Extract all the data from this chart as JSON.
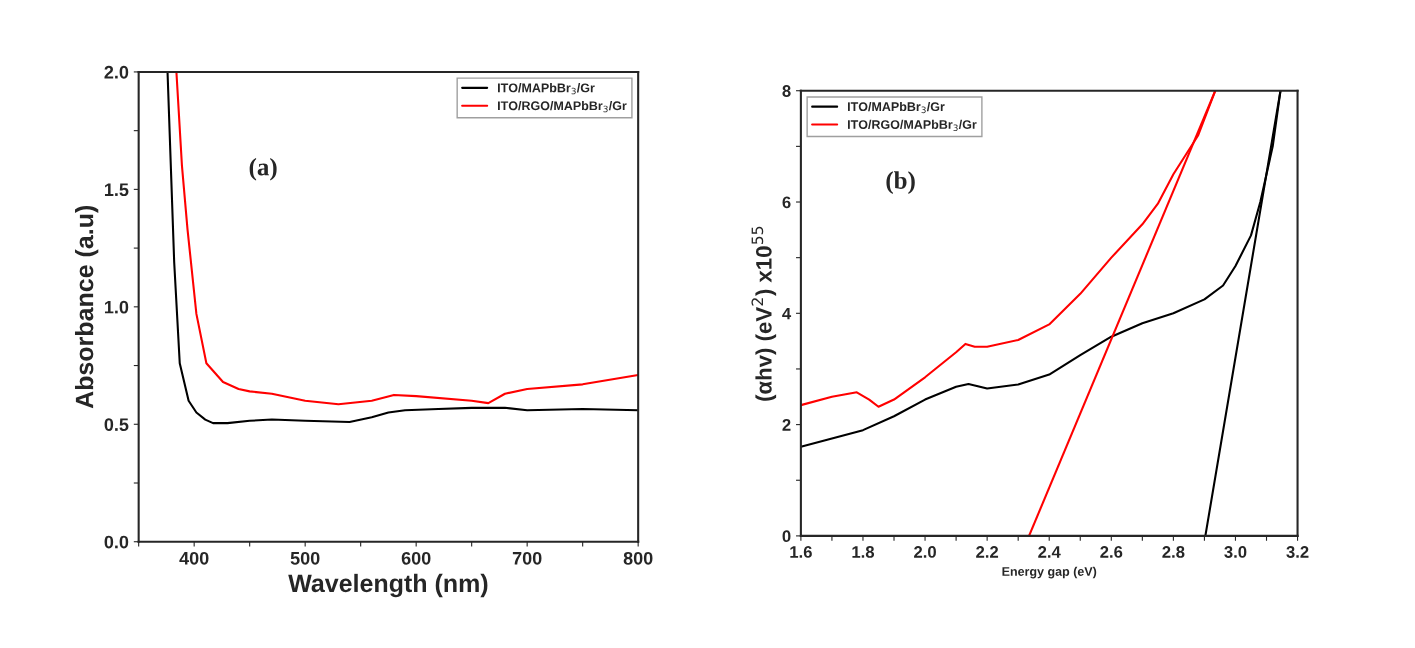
{
  "chart_data": [
    {
      "type": "line",
      "xlabel": "Wavelength (nm)",
      "ylabel": "Absorbance (a.u)",
      "annotations": [
        "(a)"
      ],
      "xlim": [
        350,
        800
      ],
      "ylim": [
        0,
        2
      ],
      "xticks": [
        {
          "value": 350,
          "label": null
        },
        400,
        {
          "value": 450,
          "label": null
        },
        500,
        {
          "value": 550,
          "label": null
        },
        600,
        {
          "value": 650,
          "label": null
        },
        700,
        {
          "value": 750,
          "label": null
        },
        800
      ],
      "yticks": [
        {
          "value": 0,
          "label": "0.0"
        },
        {
          "value": 0.25,
          "label": null
        },
        0.5,
        {
          "value": 0.75,
          "label": null
        },
        {
          "value": 1,
          "label": "1.0"
        },
        {
          "value": 1.25,
          "label": null
        },
        1.5,
        {
          "value": 1.75,
          "label": null
        },
        {
          "value": 2,
          "label": "2.0"
        }
      ],
      "grid": false,
      "legend": "top right",
      "series": [
        {
          "name": "ITO/MAPbBr$_{3}$/Gr",
          "color": "#000000",
          "x": [
            376,
            382,
            387,
            395,
            402,
            410,
            417,
            430,
            450,
            470,
            500,
            540,
            560,
            575,
            590,
            620,
            650,
            680,
            700,
            750,
            800
          ],
          "values": [
            2.0,
            1.19,
            0.76,
            0.6,
            0.55,
            0.52,
            0.505,
            0.505,
            0.515,
            0.52,
            0.515,
            0.51,
            0.53,
            0.55,
            0.56,
            0.565,
            0.57,
            0.57,
            0.56,
            0.565,
            0.56
          ]
        },
        {
          "name": "ITO/RGO/MAPbBr$_{3}$/Gr",
          "color": "#ff0000",
          "x": [
            384,
            389,
            394,
            402,
            411,
            426,
            440,
            450,
            470,
            500,
            530,
            560,
            580,
            600,
            650,
            665,
            680,
            700,
            750,
            800
          ],
          "values": [
            2.0,
            1.6,
            1.33,
            0.97,
            0.76,
            0.68,
            0.65,
            0.64,
            0.63,
            0.6,
            0.585,
            0.6,
            0.625,
            0.62,
            0.6,
            0.59,
            0.63,
            0.65,
            0.67,
            0.71
          ]
        }
      ]
    },
    {
      "type": "line",
      "xlabel": "Energy gap (eV)",
      "ylabel": "(αhv) (eV$^{2}$) x10$^{55}$",
      "annotations": [
        "(b)"
      ],
      "xlim": [
        1.6,
        3.2
      ],
      "ylim": [
        0,
        8
      ],
      "xticks": [
        1.6,
        {
          "value": 1.7,
          "label": null
        },
        1.8,
        {
          "value": 1.9,
          "label": null
        },
        {
          "value": 2,
          "label": "2.0"
        },
        {
          "value": 2.1,
          "label": null
        },
        2.2,
        {
          "value": 2.3,
          "label": null
        },
        2.4,
        {
          "value": 2.5,
          "label": null
        },
        2.6,
        {
          "value": 2.7,
          "label": null
        },
        2.8,
        {
          "value": 2.9,
          "label": null
        },
        {
          "value": 3,
          "label": "3.0"
        },
        {
          "value": 3.1,
          "label": null
        },
        3.2
      ],
      "yticks": [
        0,
        {
          "value": 1,
          "label": null
        },
        2,
        {
          "value": 3,
          "label": null
        },
        4,
        {
          "value": 5,
          "label": null
        },
        6,
        {
          "value": 7,
          "label": null
        },
        8
      ],
      "grid": false,
      "legend": "top left",
      "series": [
        {
          "name": "ITO/MAPbBr$_{3}$/Gr",
          "color": "#000000",
          "x": [
            1.6,
            1.7,
            1.8,
            1.9,
            2.0,
            2.1,
            2.14,
            2.2,
            2.3,
            2.4,
            2.5,
            2.6,
            2.7,
            2.8,
            2.9,
            2.96,
            3.0,
            3.05,
            3.08,
            3.12,
            3.145
          ],
          "values": [
            1.6,
            1.75,
            1.9,
            2.15,
            2.45,
            2.68,
            2.73,
            2.65,
            2.72,
            2.9,
            3.25,
            3.58,
            3.82,
            4.0,
            4.25,
            4.5,
            4.85,
            5.4,
            6.0,
            7.0,
            8.0
          ]
        },
        {
          "name": "ITO/RGO/MAPbBr$_{3}$/Gr",
          "color": "#ff0000",
          "x": [
            1.6,
            1.7,
            1.78,
            1.82,
            1.85,
            1.9,
            2.0,
            2.1,
            2.13,
            2.16,
            2.2,
            2.3,
            2.4,
            2.5,
            2.6,
            2.7,
            2.75,
            2.8,
            2.88,
            2.935
          ],
          "values": [
            2.35,
            2.5,
            2.58,
            2.45,
            2.32,
            2.45,
            2.85,
            3.3,
            3.45,
            3.4,
            3.4,
            3.52,
            3.8,
            4.35,
            5.0,
            5.6,
            5.97,
            6.5,
            7.2,
            8.0
          ]
        },
        {
          "color": "#ff0000",
          "x": [
            2.335,
            2.935
          ],
          "values": [
            0,
            8
          ]
        },
        {
          "color": "#000000",
          "x": [
            2.903,
            3.145
          ],
          "values": [
            0,
            8
          ]
        }
      ]
    }
  ]
}
